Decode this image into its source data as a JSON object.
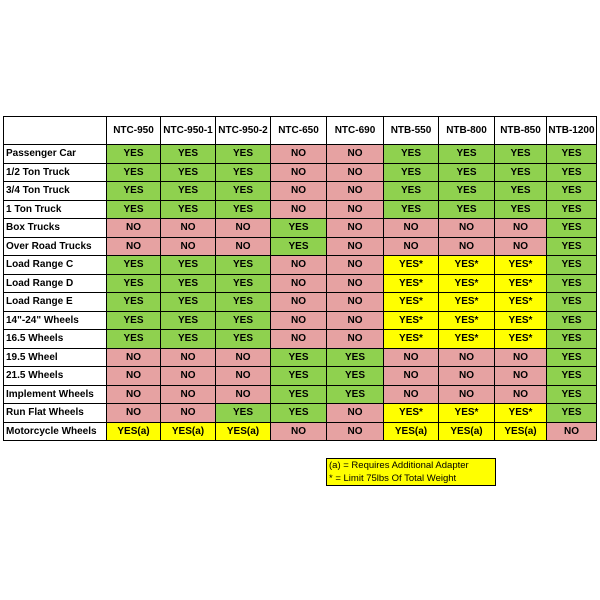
{
  "table": {
    "columns": [
      "NTC-950",
      "NTC-950-1",
      "NTC-950-2",
      "NTC-650",
      "NTC-690",
      "NTB-550",
      "NTB-800",
      "NTB-850",
      "NTB-1200"
    ],
    "rows": [
      {
        "label": "Passenger Car",
        "cells": [
          "YES",
          "YES",
          "YES",
          "NO",
          "NO",
          "YES",
          "YES",
          "YES",
          "YES"
        ]
      },
      {
        "label": "1/2 Ton Truck",
        "cells": [
          "YES",
          "YES",
          "YES",
          "NO",
          "NO",
          "YES",
          "YES",
          "YES",
          "YES"
        ]
      },
      {
        "label": "3/4 Ton Truck",
        "cells": [
          "YES",
          "YES",
          "YES",
          "NO",
          "NO",
          "YES",
          "YES",
          "YES",
          "YES"
        ]
      },
      {
        "label": "1 Ton Truck",
        "cells": [
          "YES",
          "YES",
          "YES",
          "NO",
          "NO",
          "YES",
          "YES",
          "YES",
          "YES"
        ]
      },
      {
        "label": "Box Trucks",
        "cells": [
          "NO",
          "NO",
          "NO",
          "YES",
          "NO",
          "NO",
          "NO",
          "NO",
          "YES"
        ]
      },
      {
        "label": "Over Road Trucks",
        "cells": [
          "NO",
          "NO",
          "NO",
          "YES",
          "NO",
          "NO",
          "NO",
          "NO",
          "YES"
        ]
      },
      {
        "label": "Load Range C",
        "cells": [
          "YES",
          "YES",
          "YES",
          "NO",
          "NO",
          "YES*",
          "YES*",
          "YES*",
          "YES"
        ]
      },
      {
        "label": "Load Range D",
        "cells": [
          "YES",
          "YES",
          "YES",
          "NO",
          "NO",
          "YES*",
          "YES*",
          "YES*",
          "YES"
        ]
      },
      {
        "label": "Load Range E",
        "cells": [
          "YES",
          "YES",
          "YES",
          "NO",
          "NO",
          "YES*",
          "YES*",
          "YES*",
          "YES"
        ]
      },
      {
        "label": "14\"-24\" Wheels",
        "cells": [
          "YES",
          "YES",
          "YES",
          "NO",
          "NO",
          "YES*",
          "YES*",
          "YES*",
          "YES"
        ]
      },
      {
        "label": "16.5 Wheels",
        "cells": [
          "YES",
          "YES",
          "YES",
          "NO",
          "NO",
          "YES*",
          "YES*",
          "YES*",
          "YES"
        ]
      },
      {
        "label": "19.5 Wheel",
        "cells": [
          "NO",
          "NO",
          "NO",
          "YES",
          "YES",
          "NO",
          "NO",
          "NO",
          "YES"
        ]
      },
      {
        "label": "21.5 Wheels",
        "cells": [
          "NO",
          "NO",
          "NO",
          "YES",
          "YES",
          "NO",
          "NO",
          "NO",
          "YES"
        ]
      },
      {
        "label": "Implement Wheels",
        "cells": [
          "NO",
          "NO",
          "NO",
          "YES",
          "YES",
          "NO",
          "NO",
          "NO",
          "YES"
        ]
      },
      {
        "label": "Run Flat Wheels",
        "cells": [
          "NO",
          "NO",
          "YES",
          "YES",
          "NO",
          "YES*",
          "YES*",
          "YES*",
          "YES"
        ]
      },
      {
        "label": "Motorcycle Wheels",
        "cells": [
          "YES(a)",
          "YES(a)",
          "YES(a)",
          "NO",
          "NO",
          "YES(a)",
          "YES(a)",
          "YES(a)",
          "NO"
        ]
      }
    ],
    "cell_colors": {
      "YES": "#8fd14f",
      "NO": "#e6a2a2",
      "YES*": "#ffff00",
      "YES(a)": "#ffff00"
    }
  },
  "notes": [
    "(a) = Requires Additional Adapter",
    "* = Limit 75lbs Of Total Weight"
  ]
}
